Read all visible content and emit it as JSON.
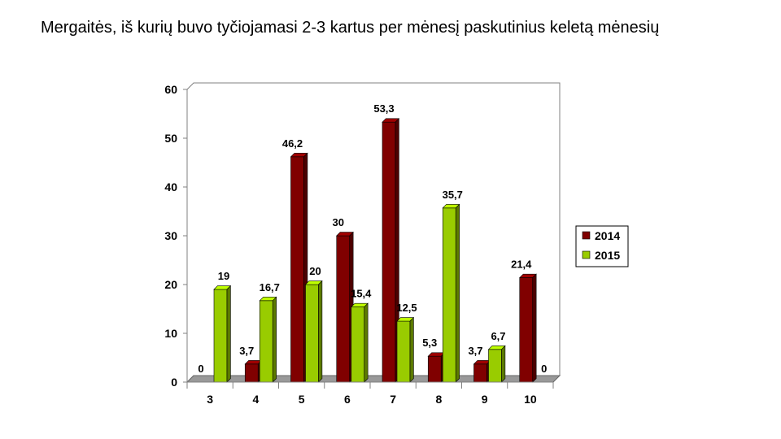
{
  "slide": {
    "title": "Mergaitės, iš kurių buvo tyčiojamasi  2-3 kartus per mėnesį paskutinius keletą mėnesių"
  },
  "chart_data": {
    "type": "bar",
    "categories": [
      "3",
      "4",
      "5",
      "6",
      "7",
      "8",
      "9",
      "10"
    ],
    "series": [
      {
        "name": "2014",
        "values": [
          0,
          3.7,
          46.2,
          30,
          53.3,
          5.3,
          3.7,
          21.4
        ],
        "labels": [
          "0",
          "3,7",
          "46,2",
          "30",
          "53,3",
          "5,3",
          "3,7",
          "21,4"
        ],
        "color": "#800000"
      },
      {
        "name": "2015",
        "values": [
          19,
          16.7,
          20,
          15.4,
          12.5,
          35.7,
          6.7,
          0
        ],
        "labels": [
          "19",
          "16,7",
          "20",
          "15,4",
          "12,5",
          "35,7",
          "6,7",
          "0"
        ],
        "color": "#99cc00"
      }
    ],
    "ylim": [
      0,
      60
    ],
    "yticks": [
      "0",
      "10",
      "20",
      "30",
      "40",
      "50",
      "60"
    ],
    "grid": false,
    "legend": "right",
    "style": "3d"
  }
}
